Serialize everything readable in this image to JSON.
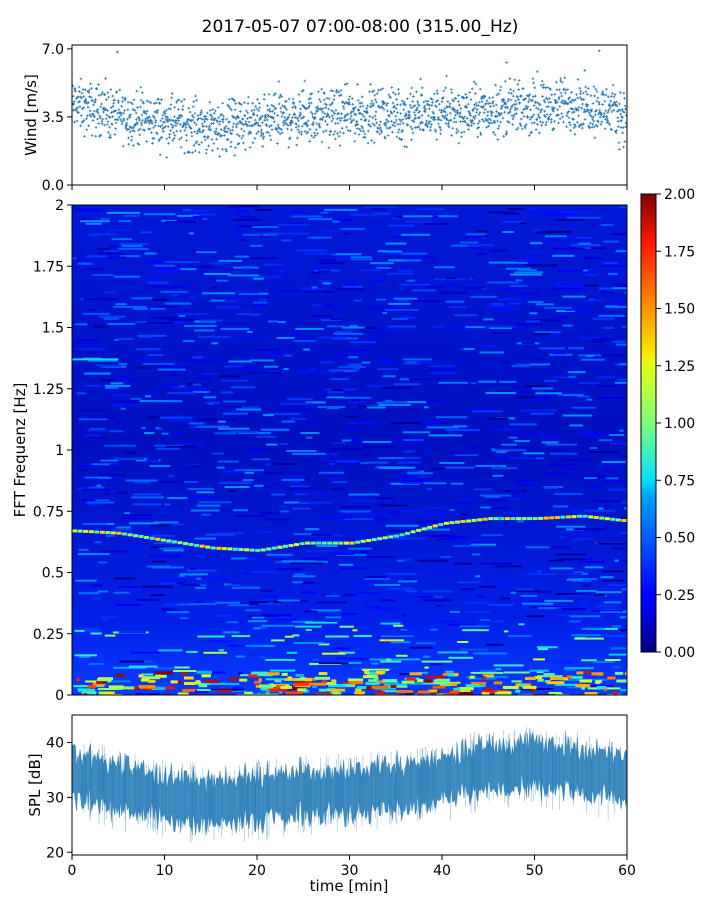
{
  "figure": {
    "title": "2017-05-07 07:00-08:00 (315.00_Hz)"
  },
  "chart_data": [
    {
      "type": "scatter",
      "name": "wind",
      "ylabel": "Wind [m/s]",
      "xlim": [
        0,
        60
      ],
      "ylim": [
        0,
        7.2
      ],
      "yticks": [
        "0.0",
        "3.5",
        "7.0"
      ],
      "ytick_values": [
        0,
        3.5,
        7.0
      ],
      "marker": "+",
      "color": "#1f77b4",
      "trend_minutes": [
        0,
        5,
        10,
        15,
        20,
        25,
        30,
        35,
        40,
        45,
        50,
        55,
        60
      ],
      "trend_values": [
        4.1,
        3.6,
        3.2,
        3.0,
        3.2,
        3.5,
        3.6,
        3.6,
        3.6,
        3.8,
        4.0,
        4.2,
        3.5
      ],
      "peak_values": {
        "57": 6.9,
        "47": 6.3,
        "40.5": 5.6
      }
    },
    {
      "type": "heatmap",
      "name": "spectrogram",
      "ylabel": "FFT Frequenz [Hz]",
      "xlim": [
        0,
        60
      ],
      "ylim": [
        0,
        2
      ],
      "yticks": [
        "0",
        "0.25",
        "0.5",
        "0.75",
        "1",
        "1.25",
        "1.5",
        "1.75",
        "2"
      ],
      "ytick_values": [
        0,
        0.25,
        0.5,
        0.75,
        1,
        1.25,
        1.5,
        1.75,
        2
      ],
      "colormap": "jet",
      "colorbar": {
        "range": [
          0,
          2
        ],
        "ticks": [
          "0.00",
          "0.25",
          "0.50",
          "0.75",
          "1.00",
          "1.25",
          "1.50",
          "1.75",
          "2.00"
        ],
        "tick_values": [
          0,
          0.25,
          0.5,
          0.75,
          1,
          1.25,
          1.5,
          1.75,
          2
        ]
      },
      "band_line": {
        "minutes": [
          0,
          5,
          10,
          15,
          20,
          25,
          30,
          35,
          40,
          45,
          50,
          55,
          60
        ],
        "frequency_hz": [
          0.67,
          0.66,
          0.63,
          0.6,
          0.59,
          0.62,
          0.62,
          0.65,
          0.7,
          0.72,
          0.72,
          0.73,
          0.71
        ]
      },
      "short_line": {
        "minutes": [
          0,
          5
        ],
        "frequency_hz": 1.37
      }
    },
    {
      "type": "area",
      "name": "spl",
      "ylabel": "SPL [dB]",
      "xlabel": "time [min]",
      "xlim": [
        0,
        60
      ],
      "ylim": [
        19.5,
        45
      ],
      "yticks": [
        "20",
        "30",
        "40"
      ],
      "ytick_values": [
        20,
        30,
        40
      ],
      "xticks": [
        "0",
        "10",
        "20",
        "30",
        "40",
        "50",
        "60"
      ],
      "xtick_values": [
        0,
        10,
        20,
        30,
        40,
        50,
        60
      ],
      "color": "#1f77b4",
      "trend_minutes": [
        0,
        5,
        10,
        15,
        20,
        25,
        30,
        35,
        40,
        45,
        50,
        55,
        60
      ],
      "trend_values": [
        34,
        32,
        30,
        29,
        30,
        31,
        31,
        32,
        33,
        36,
        36,
        35,
        33
      ]
    }
  ]
}
